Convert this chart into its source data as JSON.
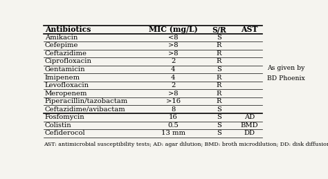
{
  "title_row": [
    "Antibiotics",
    "MIC (mg/L)",
    "S/R",
    "AST"
  ],
  "rows": [
    [
      "Amikacin",
      "<8",
      "S",
      ""
    ],
    [
      "Cefepime",
      ">8",
      "R",
      ""
    ],
    [
      "Ceftazidime",
      ">8",
      "R",
      ""
    ],
    [
      "Ciprofloxacin",
      "2",
      "R",
      ""
    ],
    [
      "Gentamicin",
      "4",
      "S",
      ""
    ],
    [
      "Imipenem",
      "4",
      "R",
      ""
    ],
    [
      "Levofloxacin",
      "2",
      "R",
      ""
    ],
    [
      "Meropenem",
      ">8",
      "R",
      ""
    ],
    [
      "Piperacillin/tazobactam",
      ">16",
      "R",
      ""
    ],
    [
      "Ceftazidime/avibactam",
      "8",
      "S",
      ""
    ],
    [
      "Fosfomycin",
      "16",
      "S",
      "AD"
    ],
    [
      "Colistin",
      "0.5",
      "S",
      "BMD"
    ],
    [
      "Cefiderocol",
      "13 mm",
      "S",
      "DD"
    ]
  ],
  "side_note_rows": [
    4,
    5
  ],
  "side_note": [
    "As given by",
    "BD Phoenix"
  ],
  "footnote": "AST: antimicrobial susceptibility tests; AD: agar dilution; BMD: broth microdilution; DD: disk diffusion.",
  "bold_separator_after": 9,
  "bg_color": "#f5f4ef",
  "font_size": 7.2,
  "header_font_size": 7.8
}
